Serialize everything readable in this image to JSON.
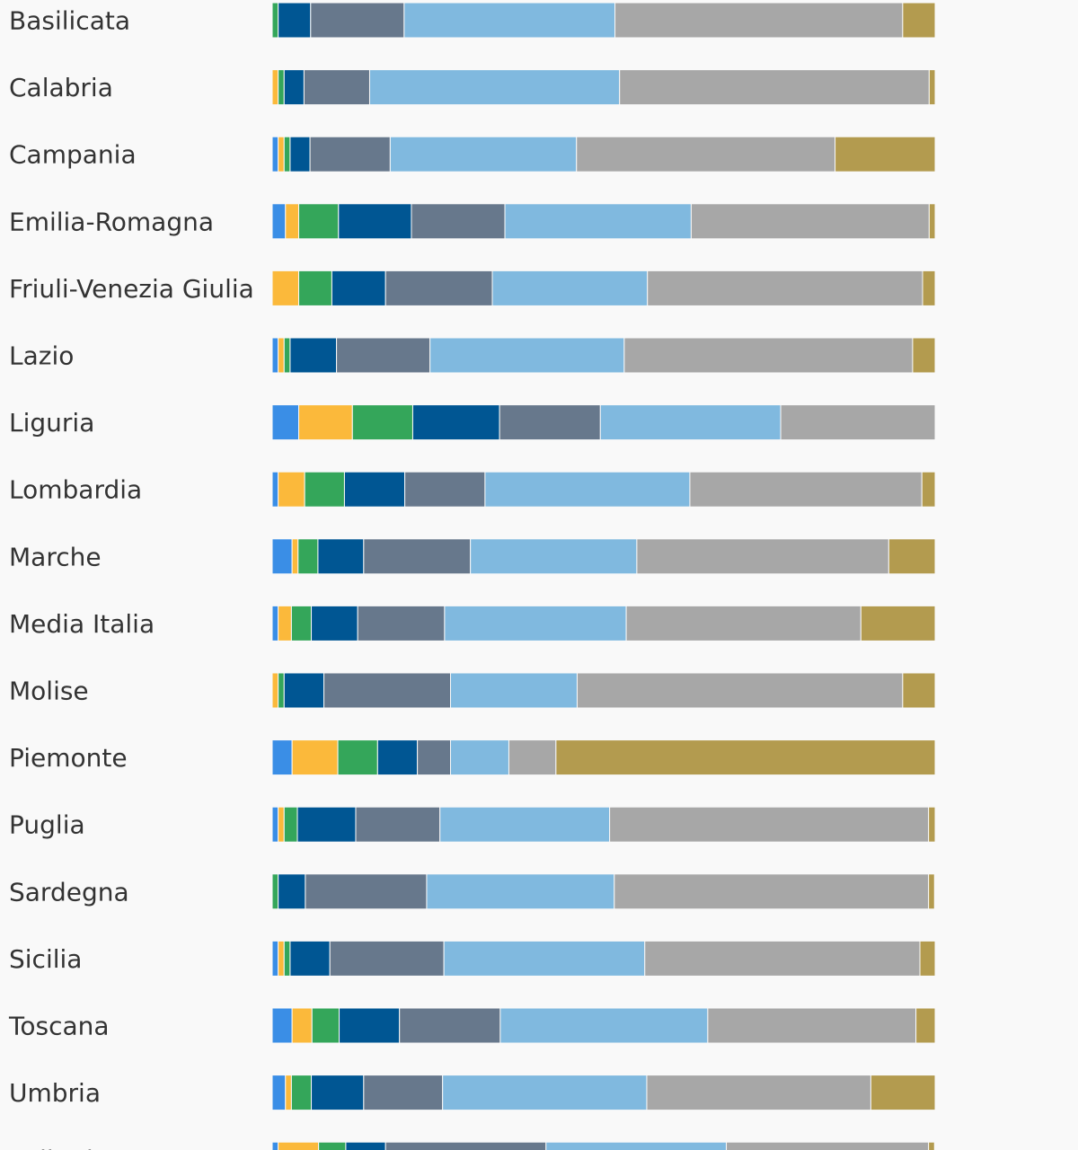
{
  "chart_data": {
    "type": "bar",
    "orientation": "horizontal",
    "stacked": true,
    "normalized": true,
    "xlim": [
      0,
      100
    ],
    "grid": false,
    "title": "",
    "xlabel": "",
    "ylabel": "",
    "legend": [],
    "categories": [
      "Basilicata",
      "Calabria",
      "Campania",
      "Emilia-Romagna",
      "Friuli-Venezia Giulia",
      "Lazio",
      "Liguria",
      "Lombardia",
      "Marche",
      "Media Italia",
      "Molise",
      "Piemonte",
      "Puglia",
      "Sardegna",
      "Sicilia",
      "Toscana",
      "Umbria",
      "Valle d'Aosta"
    ],
    "series": [
      {
        "color": "#3a8ee6",
        "values": [
          0,
          0,
          0.9,
          2.0,
          0,
          0.9,
          4.0,
          0.9,
          3.0,
          0.9,
          0,
          3.0,
          0.9,
          0,
          0.9,
          3.0,
          2.0,
          0.9
        ]
      },
      {
        "color": "#fbb93b",
        "values": [
          0,
          0.9,
          0.9,
          2.0,
          4.0,
          0.9,
          8.1,
          4.0,
          0.9,
          2.0,
          0.9,
          6.9,
          0.9,
          0,
          0.9,
          3.0,
          0.9,
          6.1
        ]
      },
      {
        "color": "#34a65a",
        "values": [
          0.9,
          0.9,
          0.9,
          6.0,
          5.0,
          0.9,
          9.1,
          6.0,
          3.0,
          3.0,
          0.9,
          6.0,
          2.0,
          0.9,
          0.9,
          4.1,
          3.0,
          4.1
        ]
      },
      {
        "color": "#005693",
        "values": [
          4.9,
          3.0,
          3.0,
          11.0,
          8.1,
          7.0,
          13.1,
          9.1,
          6.9,
          7.0,
          6.0,
          6.0,
          8.8,
          4.1,
          6.0,
          9.1,
          7.9,
          6.0
        ]
      },
      {
        "color": "#67788c",
        "values": [
          14.1,
          9.9,
          12.1,
          14.1,
          16.1,
          14.1,
          15.2,
          12.1,
          16.1,
          13.1,
          19.1,
          5.0,
          12.7,
          18.3,
          17.2,
          15.2,
          11.9,
          24.2
        ]
      },
      {
        "color": "#80b9df",
        "values": [
          31.8,
          37.7,
          28.1,
          28.1,
          23.4,
          29.3,
          27.2,
          30.9,
          25.1,
          27.4,
          19.1,
          8.8,
          25.6,
          28.3,
          30.3,
          31.3,
          30.8,
          27.2
        ]
      },
      {
        "color": "#a7a7a7",
        "values": [
          43.4,
          46.7,
          39.0,
          35.9,
          41.5,
          43.5,
          23.3,
          35.0,
          38.0,
          35.4,
          49.1,
          7.1,
          48.1,
          47.4,
          41.5,
          31.4,
          33.8,
          30.5
        ]
      },
      {
        "color": "#b39b4f",
        "values": [
          4.9,
          0.9,
          15.1,
          0.9,
          1.9,
          3.4,
          0,
          2.0,
          7.0,
          11.2,
          4.9,
          57.2,
          1.0,
          0.9,
          2.3,
          2.9,
          9.7,
          0.9
        ]
      }
    ]
  }
}
